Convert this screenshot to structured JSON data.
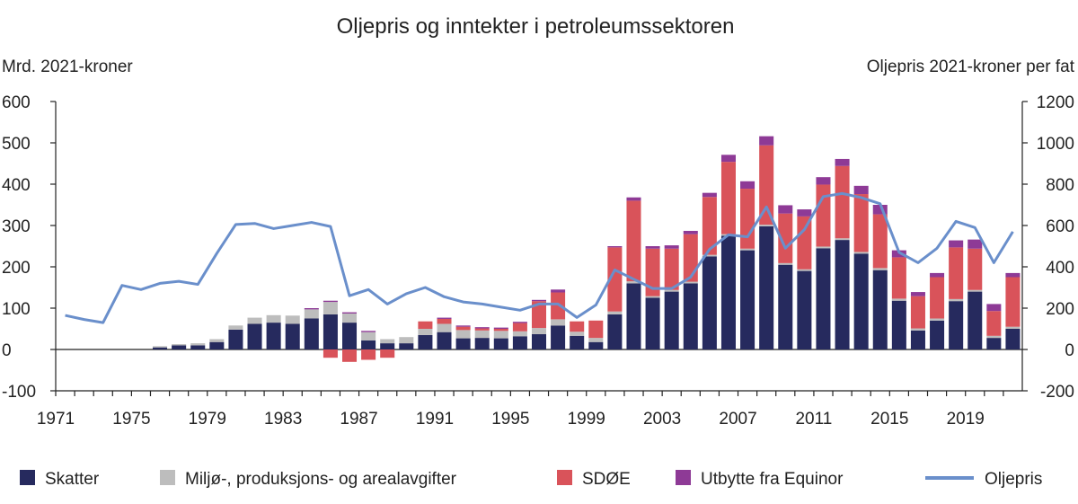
{
  "chart_data": {
    "type": "bar",
    "title": "Oljepris og inntekter i petroleumssektoren",
    "ylabel_left": "Mrd. 2021-kroner",
    "ylabel_right": "Oljepris 2021-kroner per fat",
    "ylim_left": [
      -100,
      600
    ],
    "ylim_right": [
      -200,
      1200
    ],
    "yticks_left": [
      "-100",
      "0",
      "100",
      "200",
      "300",
      "400",
      "500",
      "600"
    ],
    "yticks_right": [
      "-200",
      "0",
      "200",
      "400",
      "600",
      "800",
      "1000",
      "1200"
    ],
    "xticks": [
      "1971",
      "1975",
      "1979",
      "1983",
      "1987",
      "1991",
      "1995",
      "1999",
      "2003",
      "2007",
      "2011",
      "2015",
      "2019"
    ],
    "x": [
      1971,
      1972,
      1973,
      1974,
      1975,
      1976,
      1977,
      1978,
      1979,
      1980,
      1981,
      1982,
      1983,
      1984,
      1985,
      1986,
      1987,
      1988,
      1989,
      1990,
      1991,
      1992,
      1993,
      1994,
      1995,
      1996,
      1997,
      1998,
      1999,
      2000,
      2001,
      2002,
      2003,
      2004,
      2005,
      2006,
      2007,
      2008,
      2009,
      2010,
      2011,
      2012,
      2013,
      2014,
      2015,
      2016,
      2017,
      2018,
      2019,
      2020,
      2021
    ],
    "stacked": true,
    "series": [
      {
        "name": "Skatter",
        "color": "#262a5e",
        "axis": "left",
        "values": [
          0,
          0,
          0,
          0,
          0,
          5,
          10,
          10,
          18,
          48,
          62,
          65,
          62,
          75,
          85,
          65,
          22,
          15,
          15,
          35,
          42,
          27,
          28,
          27,
          32,
          37,
          58,
          33,
          18,
          85,
          160,
          125,
          140,
          160,
          225,
          275,
          240,
          298,
          205,
          190,
          245,
          265,
          232,
          192,
          118,
          46,
          70,
          117,
          140,
          28,
          50
        ]
      },
      {
        "name": "Miljø-, produksjons- og arealavgifter",
        "color": "#bdbdbd",
        "axis": "left",
        "values": [
          0,
          0,
          0,
          0,
          0,
          3,
          3,
          5,
          7,
          10,
          15,
          18,
          20,
          22,
          30,
          22,
          20,
          10,
          15,
          15,
          20,
          20,
          18,
          18,
          12,
          15,
          15,
          10,
          10,
          7,
          5,
          4,
          4,
          4,
          4,
          4,
          4,
          4,
          4,
          4,
          4,
          4,
          4,
          5,
          5,
          5,
          5,
          5,
          4,
          5,
          5
        ]
      },
      {
        "name": "SDØE",
        "color": "#d9535a",
        "axis": "left",
        "values": [
          0,
          0,
          0,
          0,
          0,
          0,
          0,
          0,
          0,
          0,
          0,
          0,
          0,
          0,
          -20,
          -30,
          -25,
          -20,
          0,
          18,
          12,
          8,
          5,
          5,
          20,
          65,
          65,
          25,
          42,
          155,
          195,
          115,
          100,
          115,
          140,
          175,
          145,
          192,
          120,
          128,
          150,
          175,
          140,
          130,
          100,
          78,
          100,
          125,
          100,
          60,
          120
        ]
      },
      {
        "name": "Utbytte fra Equinor",
        "color": "#8e3a96",
        "axis": "left",
        "values": [
          0,
          0,
          0,
          0,
          0,
          0,
          0,
          0,
          0,
          0,
          0,
          0,
          0,
          3,
          3,
          3,
          3,
          0,
          0,
          0,
          3,
          3,
          3,
          3,
          3,
          3,
          7,
          0,
          0,
          3,
          8,
          6,
          8,
          8,
          10,
          17,
          18,
          22,
          20,
          17,
          18,
          17,
          20,
          23,
          17,
          10,
          10,
          17,
          22,
          17,
          10
        ]
      },
      {
        "name": "Oljepris",
        "color": "#6a8fcb",
        "axis": "right",
        "line": true,
        "values": [
          165,
          145,
          130,
          310,
          290,
          320,
          330,
          315,
          465,
          605,
          610,
          585,
          600,
          615,
          595,
          260,
          290,
          220,
          270,
          300,
          255,
          230,
          220,
          205,
          190,
          220,
          220,
          155,
          215,
          385,
          340,
          295,
          295,
          350,
          485,
          555,
          545,
          690,
          490,
          580,
          740,
          755,
          735,
          705,
          470,
          420,
          490,
          620,
          590,
          420,
          570
        ]
      }
    ]
  }
}
